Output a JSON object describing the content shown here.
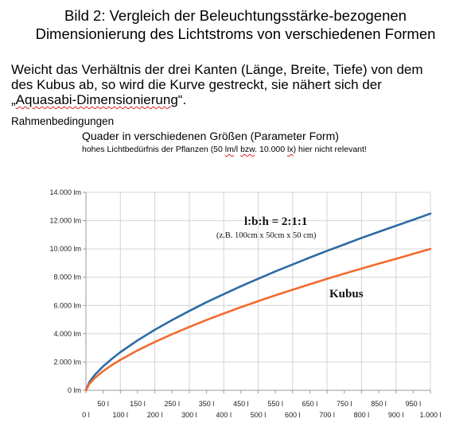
{
  "title": {
    "line1": "Bild 2: Vergleich der  Beleuchtungsstärke-bezogenen",
    "line2": "Dimensionierung des Lichtstroms von verschiedenen Formen"
  },
  "intro": {
    "line1": "Weicht das Verhältnis der drei Kanten (Länge, Breite, Tiefe) von dem",
    "line2": "des Kubus ab, so wird die Kurve gestreckt, sie nähert sich der",
    "line3_open": "„",
    "line3_word": "Aquasabi-Dimensionierung",
    "line3_close": "“."
  },
  "conditions": {
    "heading": "Rahmenbedingungen",
    "item1": "Quader in verschiedenen Größen (Parameter Form)",
    "item2_a": "hohes Lichtbedürfnis der Pflanzen (50 ",
    "item2_lm": "lm",
    "item2_b": "/l ",
    "item2_bzw": "bzw",
    "item2_c": ". 10.000 ",
    "item2_lx": "lx",
    "item2_d": ") hier nicht relevant!"
  },
  "colors": {
    "box": "#2e6aa3",
    "cube": "#f26b2e"
  },
  "chart_data": {
    "type": "line",
    "x_unit": "l",
    "y_unit": "lm",
    "xlim": [
      0,
      1000
    ],
    "ylim": [
      0,
      14000
    ],
    "grid": true,
    "yticks": [
      "0 lm",
      "2.000 lm",
      "4.000 lm",
      "6.000 lm",
      "8.000 lm",
      "10.000 lm",
      "12.000 lm",
      "14.000 lm"
    ],
    "xticks_lower": [
      "0 l",
      "100 l",
      "200 l",
      "300 l",
      "400 l",
      "500 l",
      "600 l",
      "700 l",
      "800 l",
      "900 l",
      "1.000 l"
    ],
    "xticks_upper": [
      "50 l",
      "150 l",
      "250 l",
      "350 l",
      "450 l",
      "550 l",
      "650 l",
      "750 l",
      "850 l",
      "950 l"
    ],
    "x": [
      0,
      10,
      25,
      50,
      75,
      100,
      150,
      200,
      250,
      300,
      350,
      400,
      450,
      500,
      550,
      600,
      650,
      700,
      750,
      800,
      850,
      900,
      950,
      1000
    ],
    "series": [
      {
        "label": "l:b:h = 2:1:1",
        "sublabel": "(z.B. 100cm x 50cm x 50 cm)",
        "values": [
          0,
          580,
          1070,
          1700,
          2220,
          2700,
          3530,
          4280,
          4970,
          5610,
          6230,
          6800,
          7360,
          7890,
          8410,
          8900,
          9390,
          9860,
          10320,
          10780,
          11210,
          11640,
          12060,
          12500
        ]
      },
      {
        "label": "Kubus",
        "values": [
          0,
          460,
          850,
          1360,
          1780,
          2150,
          2820,
          3420,
          3970,
          4480,
          4970,
          5430,
          5880,
          6300,
          6720,
          7110,
          7500,
          7880,
          8250,
          8610,
          8960,
          9300,
          9650,
          10000
        ]
      }
    ]
  }
}
